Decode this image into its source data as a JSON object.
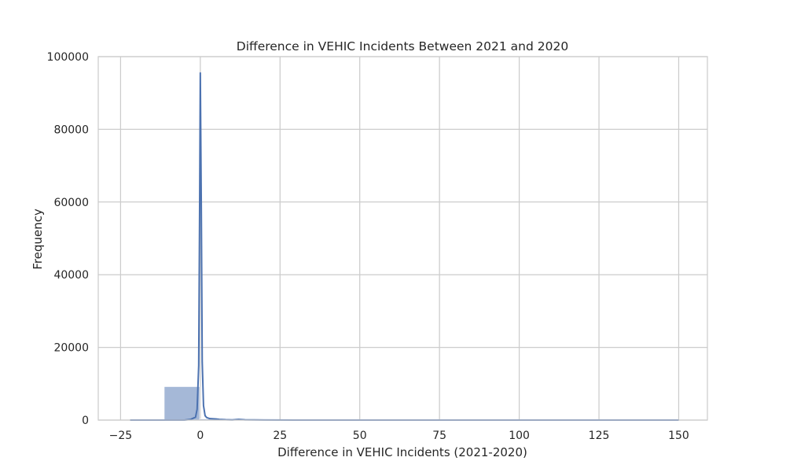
{
  "chart_data": {
    "type": "histogram",
    "title": "Difference in VEHIC Incidents Between 2021 and 2020",
    "xlabel": "Difference in VEHIC Incidents (2021-2020)",
    "ylabel": "Frequency",
    "xlim": [
      -32,
      159
    ],
    "ylim": [
      0,
      100000
    ],
    "xticks": [
      -25,
      0,
      25,
      50,
      75,
      100,
      125,
      150
    ],
    "xtick_labels": [
      "−25",
      "0",
      "25",
      "50",
      "75",
      "100",
      "125",
      "150"
    ],
    "yticks": [
      0,
      20000,
      40000,
      60000,
      80000,
      100000
    ],
    "ytick_labels": [
      "0",
      "20000",
      "40000",
      "60000",
      "80000",
      "100000"
    ],
    "grid": true,
    "colors": {
      "bar": "#4c72b0",
      "line": "#4c72b0",
      "grid": "#cccccc",
      "spine": "#cccccc"
    },
    "bins": [
      {
        "x0": -22.5,
        "x1": -11.3,
        "count": 50
      },
      {
        "x0": -11.3,
        "x1": -0.2,
        "count": 9200
      },
      {
        "x0": -0.2,
        "x1": 11.0,
        "count": 300
      },
      {
        "x0": 11.0,
        "x1": 22.2,
        "count": 60
      },
      {
        "x0": 22.2,
        "x1": 33.4,
        "count": 20
      },
      {
        "x0": 33.4,
        "x1": 44.6,
        "count": 10
      },
      {
        "x0": 44.6,
        "x1": 55.8,
        "count": 5
      },
      {
        "x0": 55.8,
        "x1": 67.0,
        "count": 3
      },
      {
        "x0": 67.0,
        "x1": 78.1,
        "count": 2
      },
      {
        "x0": 78.1,
        "x1": 89.3,
        "count": 2
      },
      {
        "x0": 89.3,
        "x1": 100.5,
        "count": 1
      },
      {
        "x0": 100.5,
        "x1": 111.7,
        "count": 1
      },
      {
        "x0": 111.7,
        "x1": 122.9,
        "count": 1
      },
      {
        "x0": 122.9,
        "x1": 134.1,
        "count": 1
      },
      {
        "x0": 134.1,
        "x1": 145.2,
        "count": 1
      },
      {
        "x0": 145.2,
        "x1": 156.4,
        "count": 1
      }
    ],
    "kde": {
      "x": [
        -22,
        -10,
        -5,
        -3,
        -1.5,
        -1,
        -0.5,
        -0.2,
        0,
        0.3,
        0.6,
        1,
        1.5,
        2,
        3,
        4,
        5,
        6,
        8,
        10,
        12,
        14,
        20,
        30,
        50,
        100,
        150
      ],
      "y": [
        0,
        0,
        0,
        200,
        800,
        3000,
        15000,
        60000,
        95500,
        60000,
        16000,
        4000,
        1200,
        700,
        400,
        350,
        300,
        200,
        100,
        60,
        200,
        80,
        20,
        5,
        0,
        0,
        0
      ]
    }
  }
}
